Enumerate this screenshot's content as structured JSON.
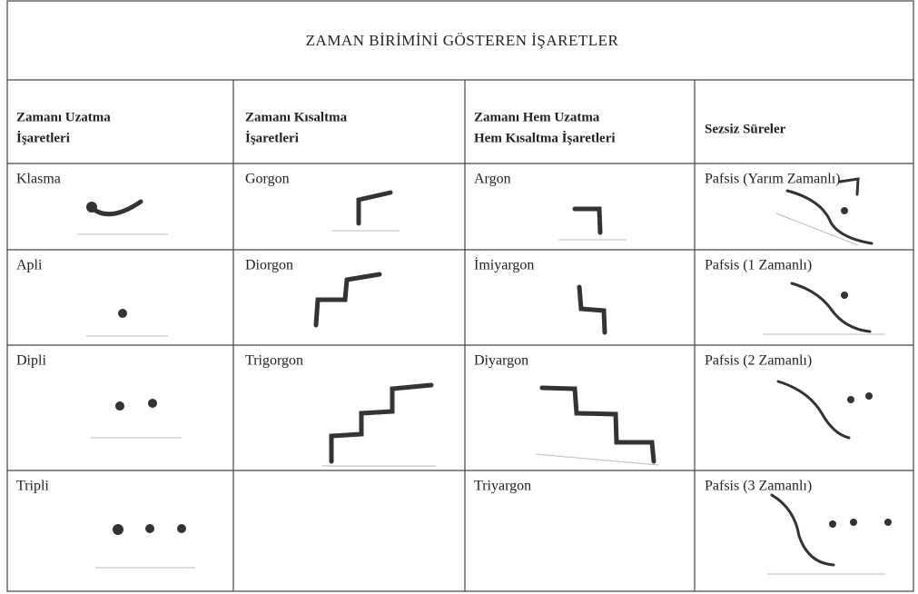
{
  "title": "ZAMAN BİRİMİNİ GÖSTEREN İŞARETLER",
  "headers": [
    [
      "Zamanı Uzatma",
      "İşaretleri"
    ],
    [
      "Zamanı Kısaltma",
      "İşaretleri"
    ],
    [
      "Zamanı Hem Uzatma",
      "Hem Kısaltma İşaretleri"
    ],
    [
      "Sezsiz Süreler"
    ]
  ],
  "rows": [
    [
      "Klasma",
      "Gorgon",
      "Argon",
      "Pafsis (Yarım Zamanlı)"
    ],
    [
      "Apli",
      "Diorgon",
      "İmiyargon",
      "Pafsis (1 Zamanlı)"
    ],
    [
      "Dipli",
      "Trigorgon",
      "Diyargon",
      "Pafsis (2 Zamanlı)"
    ],
    [
      "Tripli",
      null,
      "Triyargon",
      "Pafsis (3 Zamanlı)"
    ]
  ]
}
